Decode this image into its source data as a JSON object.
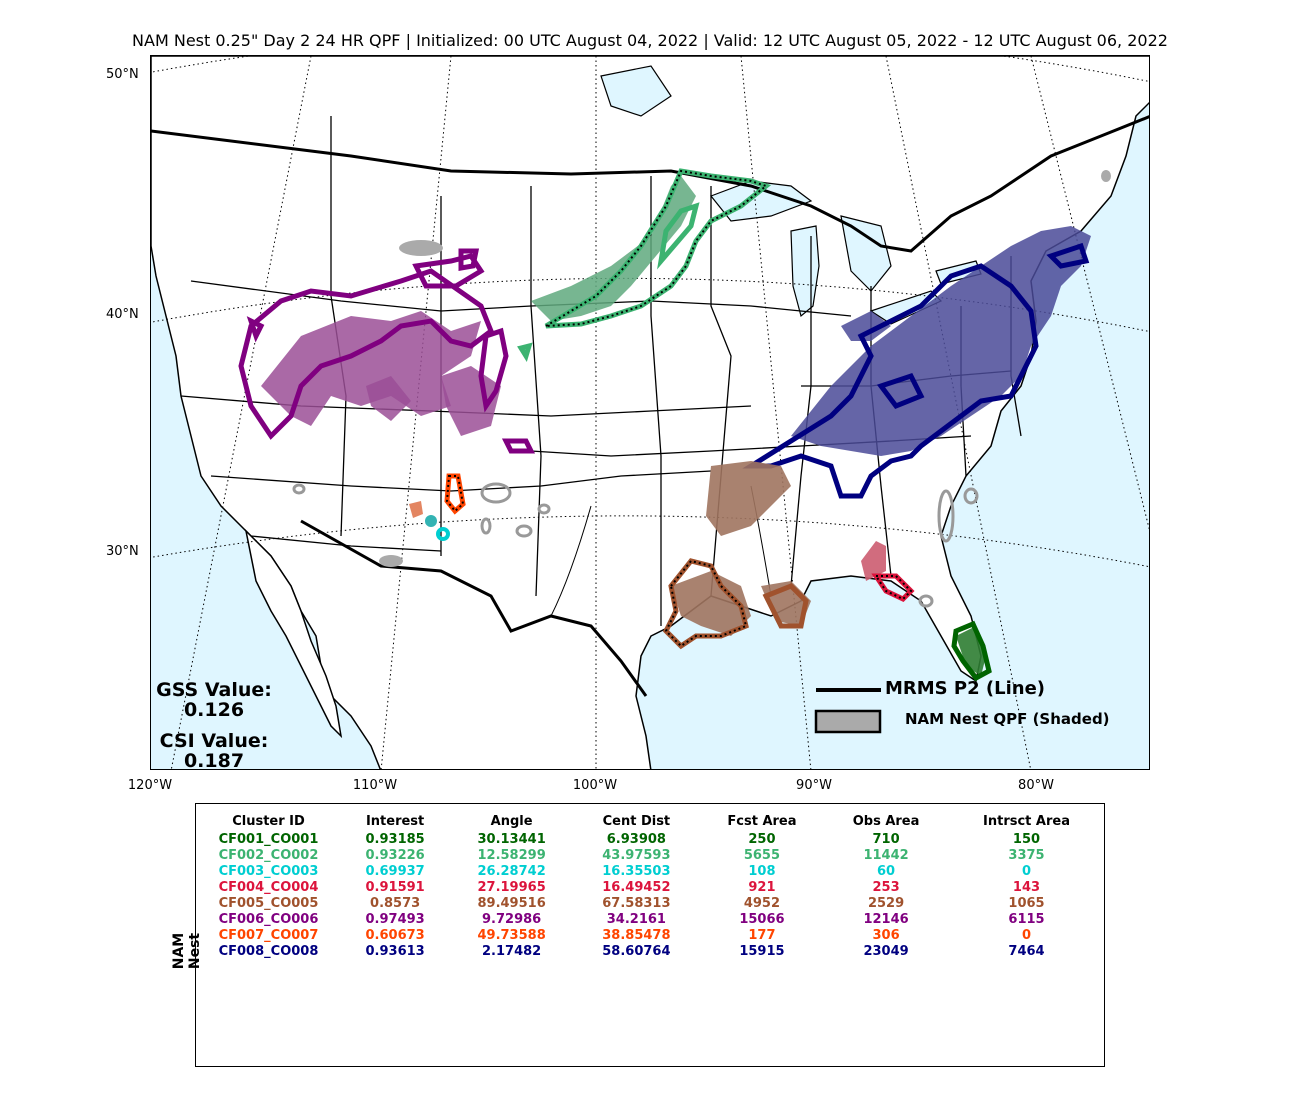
{
  "title": "NAM Nest 0.25\" Day 2 24 HR QPF | Initialized: 00 UTC August 04, 2022 | Valid: 12 UTC August 05, 2022 - 12 UTC August 06, 2022",
  "map": {
    "lat_labels": [
      "50°N",
      "40°N",
      "30°N"
    ],
    "lon_labels": [
      "120°W",
      "110°W",
      "100°W",
      "90°W",
      "80°W"
    ],
    "ocean_color": "#dff6ff",
    "land_color": "#ffffff"
  },
  "scores": {
    "gss_label": "GSS Value:",
    "gss_value": "0.126",
    "csi_label": "CSI Value:",
    "csi_value": "0.187"
  },
  "legend": {
    "line_label": "MRMS P2 (Line)",
    "shaded_label": "NAM Nest QPF (Shaded)"
  },
  "table": {
    "side_label": "NAM Nest",
    "headers": [
      "Cluster ID",
      "Interest",
      "Angle",
      "Cent Dist",
      "Fcst Area",
      "Obs Area",
      "Intrsct Area"
    ],
    "rows": [
      {
        "color": "#006400",
        "cells": [
          "CF001_CO001",
          "0.93185",
          "30.13441",
          "6.93908",
          "250",
          "710",
          "150"
        ]
      },
      {
        "color": "#3cb371",
        "cells": [
          "CF002_CO002",
          "0.93226",
          "12.58299",
          "43.97593",
          "5655",
          "11442",
          "3375"
        ]
      },
      {
        "color": "#00ced1",
        "cells": [
          "CF003_CO003",
          "0.69937",
          "26.28742",
          "16.35503",
          "108",
          "60",
          "0"
        ]
      },
      {
        "color": "#dc143c",
        "cells": [
          "CF004_CO004",
          "0.91591",
          "27.19965",
          "16.49452",
          "921",
          "253",
          "143"
        ]
      },
      {
        "color": "#a0522d",
        "cells": [
          "CF005_CO005",
          "0.8573",
          "89.49516",
          "67.58313",
          "4952",
          "2529",
          "1065"
        ]
      },
      {
        "color": "#800080",
        "cells": [
          "CF006_CO006",
          "0.97493",
          "9.72986",
          "34.2161",
          "15066",
          "12146",
          "6115"
        ]
      },
      {
        "color": "#ff4500",
        "cells": [
          "CF007_CO007",
          "0.60673",
          "49.73588",
          "38.85478",
          "177",
          "306",
          "0"
        ]
      },
      {
        "color": "#000080",
        "cells": [
          "CF008_CO008",
          "0.93613",
          "2.17482",
          "58.60764",
          "15915",
          "23049",
          "7464"
        ]
      }
    ]
  }
}
